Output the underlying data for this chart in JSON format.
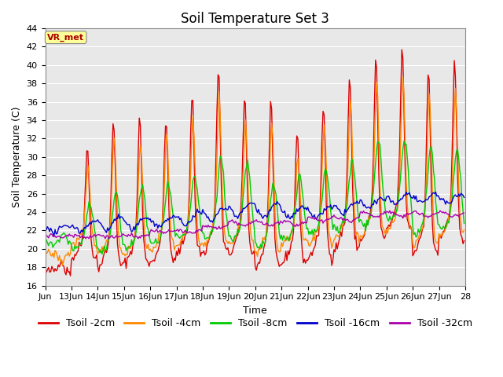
{
  "title": "Soil Temperature Set 3",
  "xlabel": "Time",
  "ylabel": "Soil Temperature (C)",
  "ylim": [
    16,
    44
  ],
  "yticks": [
    16,
    18,
    20,
    22,
    24,
    26,
    28,
    30,
    32,
    34,
    36,
    38,
    40,
    42,
    44
  ],
  "xtick_labels": [
    "Jun",
    "13Jun",
    "14Jun",
    "15Jun",
    "16Jun",
    "17Jun",
    "18Jun",
    "19Jun",
    "20Jun",
    "21Jun",
    "22Jun",
    "23Jun",
    "24Jun",
    "25Jun",
    "26Jun",
    "27Jun",
    "28"
  ],
  "series": [
    {
      "label": "Tsoil -2cm",
      "color": "#DD0000",
      "lw": 1.0
    },
    {
      "label": "Tsoil -4cm",
      "color": "#FF8800",
      "lw": 1.0
    },
    {
      "label": "Tsoil -8cm",
      "color": "#00CC00",
      "lw": 1.0
    },
    {
      "label": "Tsoil -16cm",
      "color": "#0000CC",
      "lw": 1.0
    },
    {
      "label": "Tsoil -32cm",
      "color": "#AA00AA",
      "lw": 1.0
    }
  ],
  "vr_met_label": "VR_met",
  "vr_met_color": "#AA0000",
  "vr_met_bg": "#FFFF99",
  "plot_bg": "#E8E8E8",
  "grid_color": "#FFFFFF",
  "title_fontsize": 12,
  "axis_label_fontsize": 9,
  "tick_fontsize": 8,
  "legend_fontsize": 9
}
